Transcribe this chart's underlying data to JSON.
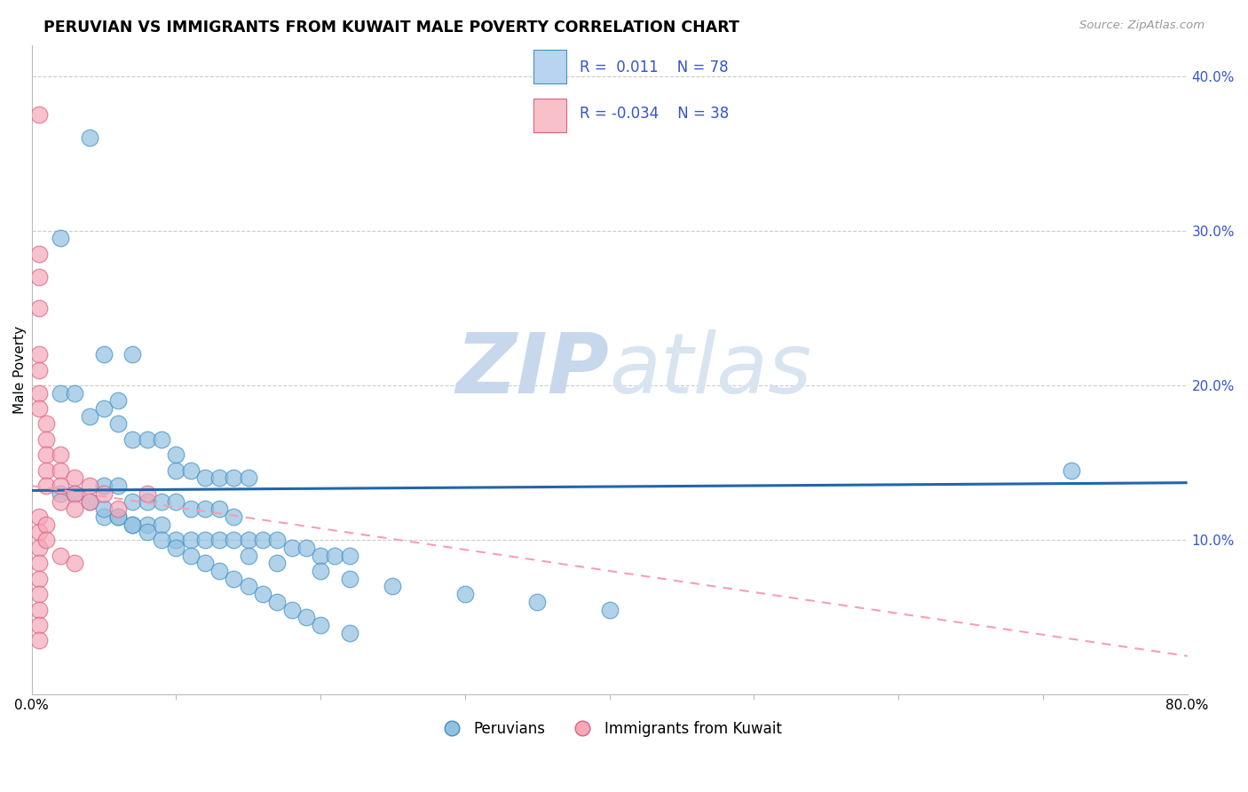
{
  "title": "PERUVIAN VS IMMIGRANTS FROM KUWAIT MALE POVERTY CORRELATION CHART",
  "source": "Source: ZipAtlas.com",
  "ylabel": "Male Poverty",
  "xlim": [
    0.0,
    0.8
  ],
  "ylim": [
    0.0,
    0.42
  ],
  "ytick_positions": [
    0.1,
    0.2,
    0.3,
    0.4
  ],
  "ytick_labels": [
    "10.0%",
    "20.0%",
    "30.0%",
    "40.0%"
  ],
  "blue_color": "#92c0e0",
  "blue_edge": "#4292c6",
  "pink_color": "#f4a8b8",
  "pink_edge": "#e06080",
  "trend_blue_color": "#2166ac",
  "trend_pink_color": "#f4a0b0",
  "watermark_color": "#c8d8ec",
  "legend_text_color": "#3355cc",
  "blue_scatter_x": [
    0.04,
    0.02,
    0.05,
    0.02,
    0.03,
    0.04,
    0.05,
    0.06,
    0.07,
    0.06,
    0.07,
    0.08,
    0.09,
    0.1,
    0.1,
    0.11,
    0.12,
    0.13,
    0.14,
    0.15,
    0.05,
    0.06,
    0.07,
    0.08,
    0.09,
    0.1,
    0.11,
    0.12,
    0.13,
    0.14,
    0.05,
    0.06,
    0.07,
    0.08,
    0.09,
    0.1,
    0.11,
    0.12,
    0.13,
    0.14,
    0.15,
    0.16,
    0.17,
    0.18,
    0.19,
    0.2,
    0.21,
    0.22,
    0.15,
    0.17,
    0.2,
    0.22,
    0.25,
    0.3,
    0.35,
    0.4,
    0.02,
    0.03,
    0.04,
    0.05,
    0.06,
    0.07,
    0.08,
    0.09,
    0.1,
    0.11,
    0.12,
    0.13,
    0.14,
    0.15,
    0.16,
    0.17,
    0.18,
    0.19,
    0.2,
    0.22,
    0.72
  ],
  "blue_scatter_y": [
    0.36,
    0.295,
    0.22,
    0.195,
    0.195,
    0.18,
    0.185,
    0.19,
    0.22,
    0.175,
    0.165,
    0.165,
    0.165,
    0.155,
    0.145,
    0.145,
    0.14,
    0.14,
    0.14,
    0.14,
    0.135,
    0.135,
    0.125,
    0.125,
    0.125,
    0.125,
    0.12,
    0.12,
    0.12,
    0.115,
    0.115,
    0.115,
    0.11,
    0.11,
    0.11,
    0.1,
    0.1,
    0.1,
    0.1,
    0.1,
    0.1,
    0.1,
    0.1,
    0.095,
    0.095,
    0.09,
    0.09,
    0.09,
    0.09,
    0.085,
    0.08,
    0.075,
    0.07,
    0.065,
    0.06,
    0.055,
    0.13,
    0.13,
    0.125,
    0.12,
    0.115,
    0.11,
    0.105,
    0.1,
    0.095,
    0.09,
    0.085,
    0.08,
    0.075,
    0.07,
    0.065,
    0.06,
    0.055,
    0.05,
    0.045,
    0.04,
    0.145
  ],
  "pink_scatter_x": [
    0.005,
    0.005,
    0.005,
    0.005,
    0.005,
    0.005,
    0.005,
    0.005,
    0.01,
    0.01,
    0.01,
    0.01,
    0.01,
    0.02,
    0.02,
    0.02,
    0.02,
    0.03,
    0.03,
    0.03,
    0.04,
    0.04,
    0.05,
    0.06,
    0.08,
    0.005,
    0.005,
    0.005,
    0.005,
    0.005,
    0.01,
    0.01,
    0.02,
    0.03,
    0.005,
    0.005,
    0.005,
    0.005
  ],
  "pink_scatter_y": [
    0.375,
    0.285,
    0.27,
    0.25,
    0.22,
    0.21,
    0.195,
    0.185,
    0.175,
    0.165,
    0.155,
    0.145,
    0.135,
    0.155,
    0.145,
    0.135,
    0.125,
    0.14,
    0.13,
    0.12,
    0.135,
    0.125,
    0.13,
    0.12,
    0.13,
    0.115,
    0.105,
    0.095,
    0.085,
    0.075,
    0.11,
    0.1,
    0.09,
    0.085,
    0.065,
    0.055,
    0.045,
    0.035
  ],
  "blue_trend_x": [
    0.0,
    0.8
  ],
  "blue_trend_y": [
    0.132,
    0.137
  ],
  "pink_trend_x": [
    0.0,
    0.8
  ],
  "pink_trend_y": [
    0.135,
    0.025
  ]
}
